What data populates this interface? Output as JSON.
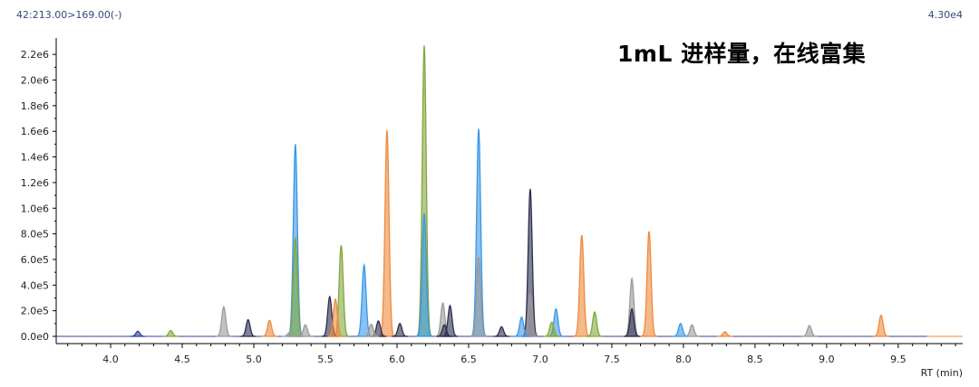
{
  "header": {
    "trace_label": "42:213.00>169.00(-)",
    "max_intensity": "4.30e4"
  },
  "annotation": "1mL 进样量，在线富集",
  "chart_data": {
    "type": "area",
    "title": "",
    "xlabel": "RT (min)",
    "ylabel": "",
    "xlim": [
      3.62,
      9.95
    ],
    "ylim": [
      0,
      2300000
    ],
    "x_ticks": [
      4.0,
      4.5,
      5.0,
      5.5,
      6.0,
      6.5,
      7.0,
      7.5,
      8.0,
      8.5,
      9.0,
      9.5
    ],
    "x_tick_labels": [
      "4.0",
      "4.5",
      "5.0",
      "5.5",
      "6.0",
      "6.5",
      "7.0",
      "7.5",
      "8.0",
      "8.5",
      "9.0",
      "9.5"
    ],
    "y_ticks": [
      0,
      200000,
      400000,
      600000,
      800000,
      1000000,
      1200000,
      1400000,
      1600000,
      1800000,
      2000000,
      2200000
    ],
    "y_tick_labels": [
      "0.0e0",
      "2.0e5",
      "4.0e5",
      "6.0e5",
      "8.0e5",
      "1.0e6",
      "1.2e6",
      "1.4e6",
      "1.6e6",
      "1.8e6",
      "2.0e6",
      "2.2e6"
    ],
    "grid": false,
    "legend": "none",
    "colors": {
      "blue": "#3a97e6",
      "olive": "#82a83c",
      "orange": "#ee8a3e",
      "navy": "#2c2f4e",
      "gray": "#9a9a9a",
      "darkblue": "#3040a0"
    },
    "peaks": [
      {
        "rt": 4.19,
        "height": 40000,
        "color": "darkblue"
      },
      {
        "rt": 4.42,
        "height": 45000,
        "color": "olive"
      },
      {
        "rt": 4.79,
        "height": 230000,
        "color": "gray"
      },
      {
        "rt": 4.96,
        "height": 130000,
        "color": "navy"
      },
      {
        "rt": 5.11,
        "height": 125000,
        "color": "orange"
      },
      {
        "rt": 5.25,
        "height": 30000,
        "color": "gray"
      },
      {
        "rt": 5.29,
        "height": 1500000,
        "color": "blue"
      },
      {
        "rt": 5.29,
        "height": 770000,
        "color": "olive"
      },
      {
        "rt": 5.36,
        "height": 90000,
        "color": "gray"
      },
      {
        "rt": 5.53,
        "height": 310000,
        "color": "navy"
      },
      {
        "rt": 5.57,
        "height": 290000,
        "color": "orange"
      },
      {
        "rt": 5.61,
        "height": 710000,
        "color": "olive"
      },
      {
        "rt": 5.77,
        "height": 555000,
        "color": "blue"
      },
      {
        "rt": 5.82,
        "height": 95000,
        "color": "gray"
      },
      {
        "rt": 5.87,
        "height": 120000,
        "color": "navy"
      },
      {
        "rt": 5.93,
        "height": 1610000,
        "color": "orange"
      },
      {
        "rt": 6.02,
        "height": 100000,
        "color": "navy"
      },
      {
        "rt": 6.19,
        "height": 2270000,
        "color": "olive"
      },
      {
        "rt": 6.19,
        "height": 960000,
        "color": "blue"
      },
      {
        "rt": 6.32,
        "height": 260000,
        "color": "gray"
      },
      {
        "rt": 6.33,
        "height": 90000,
        "color": "navy"
      },
      {
        "rt": 6.37,
        "height": 240000,
        "color": "navy"
      },
      {
        "rt": 6.57,
        "height": 1620000,
        "color": "blue"
      },
      {
        "rt": 6.57,
        "height": 620000,
        "color": "gray"
      },
      {
        "rt": 6.73,
        "height": 75000,
        "color": "navy"
      },
      {
        "rt": 6.87,
        "height": 150000,
        "color": "blue"
      },
      {
        "rt": 6.93,
        "height": 1150000,
        "color": "navy"
      },
      {
        "rt": 6.93,
        "height": 330000,
        "color": "gray"
      },
      {
        "rt": 7.08,
        "height": 110000,
        "color": "olive"
      },
      {
        "rt": 7.11,
        "height": 215000,
        "color": "blue"
      },
      {
        "rt": 7.29,
        "height": 790000,
        "color": "orange"
      },
      {
        "rt": 7.38,
        "height": 190000,
        "color": "olive"
      },
      {
        "rt": 7.64,
        "height": 450000,
        "color": "gray"
      },
      {
        "rt": 7.64,
        "height": 215000,
        "color": "navy"
      },
      {
        "rt": 7.76,
        "height": 820000,
        "color": "orange"
      },
      {
        "rt": 7.98,
        "height": 100000,
        "color": "blue"
      },
      {
        "rt": 8.06,
        "height": 90000,
        "color": "gray"
      },
      {
        "rt": 8.29,
        "height": 35000,
        "color": "orange"
      },
      {
        "rt": 8.88,
        "height": 85000,
        "color": "gray"
      },
      {
        "rt": 9.38,
        "height": 165000,
        "color": "orange"
      }
    ]
  }
}
